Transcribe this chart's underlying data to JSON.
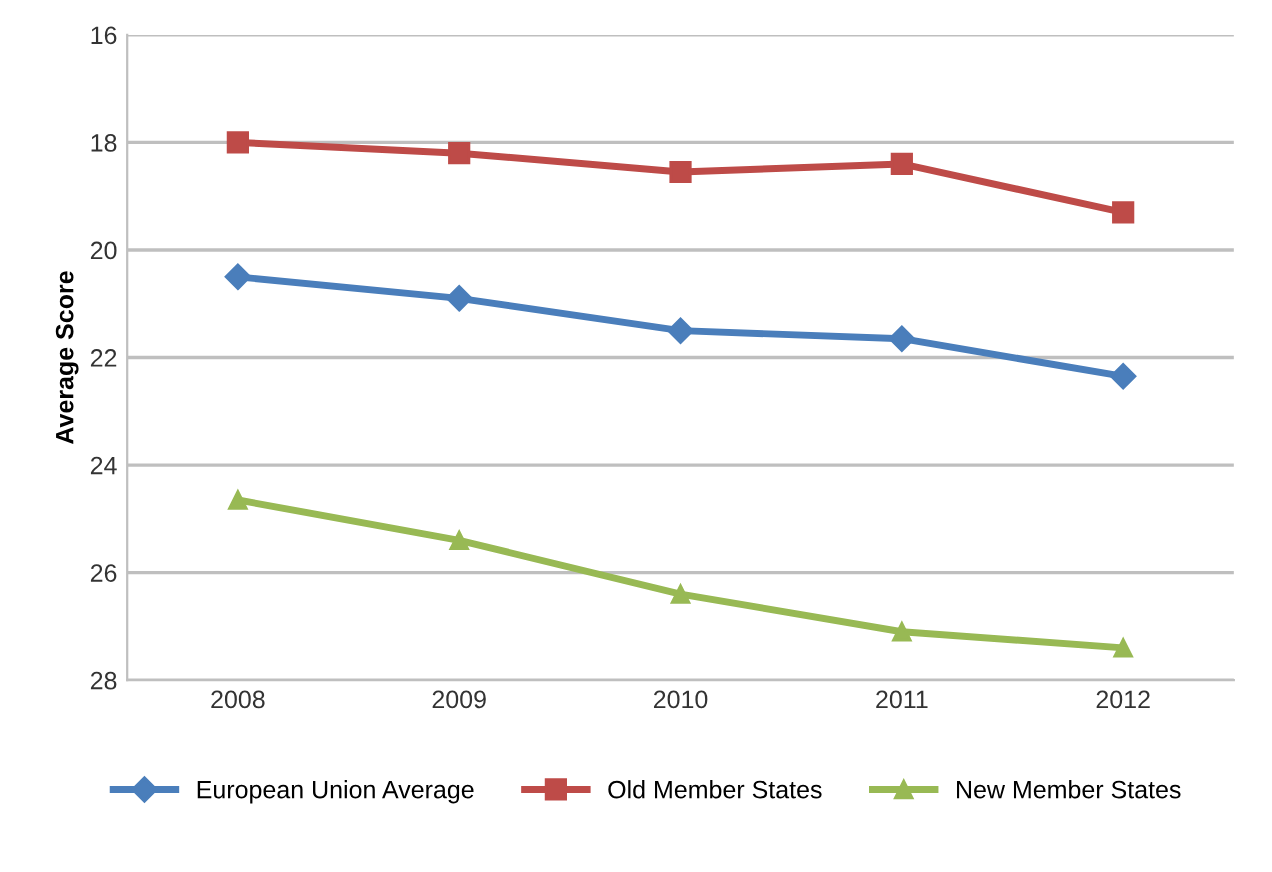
{
  "chart_data": {
    "type": "line",
    "ylabel": "Average Score",
    "categories": [
      "2008",
      "2009",
      "2010",
      "2011",
      "2012"
    ],
    "series": [
      {
        "name": "European Union Average",
        "color": "#4a7ebb",
        "marker": "diamond",
        "values": [
          20.5,
          20.9,
          21.5,
          21.65,
          22.35
        ]
      },
      {
        "name": "Old Member States",
        "color": "#be4b48",
        "marker": "square",
        "values": [
          18.0,
          18.2,
          18.55,
          18.4,
          19.3
        ]
      },
      {
        "name": "New Member States",
        "color": "#98b954",
        "marker": "triangle",
        "values": [
          24.65,
          25.4,
          26.4,
          27.1,
          27.4
        ]
      }
    ],
    "ylim": [
      28,
      16
    ],
    "yticks": [
      16,
      18,
      20,
      22,
      24,
      26,
      28
    ],
    "grid": "y",
    "legend": "bottom",
    "line_style": "solid"
  }
}
